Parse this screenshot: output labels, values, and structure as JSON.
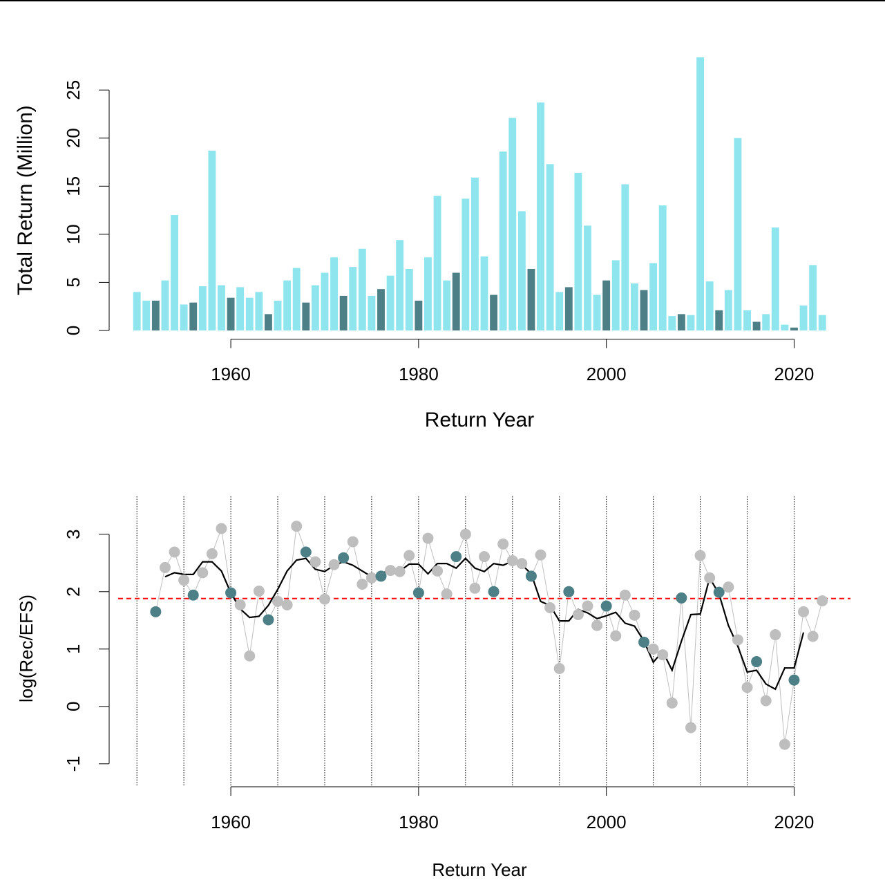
{
  "chart_data": [
    {
      "type": "bar",
      "xlabel": "Return Year",
      "ylabel": "Total Return (Million)",
      "x": [
        1950,
        1951,
        1952,
        1953,
        1954,
        1955,
        1956,
        1957,
        1958,
        1959,
        1960,
        1961,
        1962,
        1963,
        1964,
        1965,
        1966,
        1967,
        1968,
        1969,
        1970,
        1971,
        1972,
        1973,
        1974,
        1975,
        1976,
        1977,
        1978,
        1979,
        1980,
        1981,
        1982,
        1983,
        1984,
        1985,
        1986,
        1987,
        1988,
        1989,
        1990,
        1991,
        1992,
        1993,
        1994,
        1995,
        1996,
        1997,
        1998,
        1999,
        2000,
        2001,
        2002,
        2003,
        2004,
        2005,
        2006,
        2007,
        2008,
        2009,
        2010,
        2011,
        2012,
        2013,
        2014,
        2015,
        2016,
        2017,
        2018,
        2019,
        2020,
        2021,
        2022,
        2023
      ],
      "values": [
        4.0,
        3.1,
        3.1,
        5.2,
        12.0,
        2.7,
        2.9,
        4.6,
        18.7,
        4.7,
        3.4,
        4.5,
        3.4,
        4.0,
        1.7,
        3.1,
        5.2,
        6.5,
        2.9,
        4.7,
        6.0,
        7.6,
        3.6,
        6.6,
        8.5,
        3.6,
        4.3,
        5.7,
        9.4,
        6.4,
        3.1,
        7.6,
        14.0,
        5.2,
        6.0,
        13.7,
        15.9,
        7.7,
        3.7,
        18.6,
        22.1,
        12.4,
        6.4,
        23.7,
        17.3,
        4.0,
        4.5,
        16.4,
        10.9,
        3.7,
        5.2,
        7.3,
        15.2,
        4.9,
        4.2,
        7.0,
        13.0,
        1.5,
        1.7,
        1.6,
        28.4,
        5.1,
        2.1,
        4.2,
        20.0,
        2.1,
        0.9,
        1.7,
        10.7,
        0.6,
        0.3,
        2.6,
        6.8,
        1.6
      ],
      "colors": [
        "#8ee5ee",
        "#8ee5ee",
        "#4d7f86",
        "#8ee5ee",
        "#8ee5ee",
        "#8ee5ee",
        "#4d7f86",
        "#8ee5ee",
        "#8ee5ee",
        "#8ee5ee",
        "#4d7f86",
        "#8ee5ee",
        "#8ee5ee",
        "#8ee5ee",
        "#4d7f86",
        "#8ee5ee",
        "#8ee5ee",
        "#8ee5ee",
        "#4d7f86",
        "#8ee5ee",
        "#8ee5ee",
        "#8ee5ee",
        "#4d7f86",
        "#8ee5ee",
        "#8ee5ee",
        "#8ee5ee",
        "#4d7f86",
        "#8ee5ee",
        "#8ee5ee",
        "#8ee5ee",
        "#4d7f86",
        "#8ee5ee",
        "#8ee5ee",
        "#8ee5ee",
        "#4d7f86",
        "#8ee5ee",
        "#8ee5ee",
        "#8ee5ee",
        "#4d7f86",
        "#8ee5ee",
        "#8ee5ee",
        "#8ee5ee",
        "#4d7f86",
        "#8ee5ee",
        "#8ee5ee",
        "#8ee5ee",
        "#4d7f86",
        "#8ee5ee",
        "#8ee5ee",
        "#8ee5ee",
        "#4d7f86",
        "#8ee5ee",
        "#8ee5ee",
        "#8ee5ee",
        "#4d7f86",
        "#8ee5ee",
        "#8ee5ee",
        "#8ee5ee",
        "#4d7f86",
        "#8ee5ee",
        "#8ee5ee",
        "#8ee5ee",
        "#4d7f86",
        "#8ee5ee",
        "#8ee5ee",
        "#8ee5ee",
        "#4d7f86",
        "#8ee5ee",
        "#8ee5ee",
        "#8ee5ee",
        "#4d7f86",
        "#8ee5ee",
        "#8ee5ee",
        "#8ee5ee"
      ],
      "xlim": [
        1948,
        2026
      ],
      "xticks": [
        1960,
        1980,
        2000,
        2020
      ],
      "ylim": [
        -0.9,
        29.4
      ],
      "yticks": [
        0,
        5,
        10,
        15,
        20,
        25
      ]
    },
    {
      "type": "line",
      "xlabel": "Return Year",
      "ylabel": "log(Rec/EFS)",
      "x": [
        1952,
        1953,
        1954,
        1955,
        1956,
        1957,
        1958,
        1959,
        1960,
        1961,
        1962,
        1963,
        1964,
        1965,
        1966,
        1967,
        1968,
        1969,
        1970,
        1971,
        1972,
        1973,
        1974,
        1975,
        1976,
        1977,
        1978,
        1979,
        1980,
        1981,
        1982,
        1983,
        1984,
        1985,
        1986,
        1987,
        1988,
        1989,
        1990,
        1991,
        1992,
        1993,
        1994,
        1995,
        1996,
        1997,
        1998,
        1999,
        2000,
        2001,
        2002,
        2003,
        2004,
        2005,
        2006,
        2007,
        2008,
        2009,
        2010,
        2011,
        2012,
        2013,
        2014,
        2015,
        2016,
        2017,
        2018,
        2019,
        2020,
        2021,
        2022,
        2023
      ],
      "series": [
        {
          "color": "#bebebe",
          "markers": true,
          "values": [
            1.65,
            2.42,
            2.69,
            2.2,
            1.94,
            2.33,
            2.66,
            3.1,
            1.98,
            1.77,
            0.88,
            2.01,
            1.51,
            1.83,
            1.77,
            3.14,
            2.69,
            2.52,
            1.87,
            2.47,
            2.59,
            2.87,
            2.13,
            2.24,
            2.27,
            2.37,
            2.35,
            2.63,
            1.98,
            2.93,
            2.36,
            1.96,
            2.61,
            3.0,
            2.06,
            2.61,
            2.0,
            2.83,
            2.54,
            2.49,
            2.27,
            2.64,
            1.72,
            0.66,
            2.0,
            1.6,
            1.75,
            1.41,
            1.75,
            1.23,
            1.94,
            1.59,
            1.12,
            1.0,
            0.9,
            0.06,
            1.89,
            -0.37,
            2.63,
            2.24,
            1.99,
            2.08,
            1.16,
            0.33,
            0.78,
            0.1,
            1.25,
            -0.66,
            0.46,
            1.65,
            1.22,
            1.84
          ],
          "point_colors": [
            "#4d7f86",
            "#bebebe",
            "#bebebe",
            "#bebebe",
            "#4d7f86",
            "#bebebe",
            "#bebebe",
            "#bebebe",
            "#4d7f86",
            "#bebebe",
            "#bebebe",
            "#bebebe",
            "#4d7f86",
            "#bebebe",
            "#bebebe",
            "#bebebe",
            "#4d7f86",
            "#bebebe",
            "#bebebe",
            "#bebebe",
            "#4d7f86",
            "#bebebe",
            "#bebebe",
            "#bebebe",
            "#4d7f86",
            "#bebebe",
            "#bebebe",
            "#bebebe",
            "#4d7f86",
            "#bebebe",
            "#bebebe",
            "#bebebe",
            "#4d7f86",
            "#bebebe",
            "#bebebe",
            "#bebebe",
            "#4d7f86",
            "#bebebe",
            "#bebebe",
            "#bebebe",
            "#4d7f86",
            "#bebebe",
            "#bebebe",
            "#bebebe",
            "#4d7f86",
            "#bebebe",
            "#bebebe",
            "#bebebe",
            "#4d7f86",
            "#bebebe",
            "#bebebe",
            "#bebebe",
            "#4d7f86",
            "#bebebe",
            "#bebebe",
            "#bebebe",
            "#4d7f86",
            "#bebebe",
            "#bebebe",
            "#bebebe",
            "#4d7f86",
            "#bebebe",
            "#bebebe",
            "#bebebe",
            "#4d7f86",
            "#bebebe",
            "#bebebe",
            "#bebebe",
            "#4d7f86",
            "#bebebe",
            "#bebebe",
            "#bebebe"
          ]
        },
        {
          "color": "#000000",
          "markers": false,
          "values": [
            null,
            2.26,
            2.33,
            2.3,
            2.3,
            2.52,
            2.52,
            2.36,
            1.98,
            1.7,
            1.55,
            1.57,
            1.76,
            2.04,
            2.36,
            2.55,
            2.58,
            2.39,
            2.35,
            2.46,
            2.52,
            2.46,
            2.36,
            2.26,
            2.3,
            2.4,
            2.36,
            2.48,
            2.48,
            2.31,
            2.49,
            2.49,
            2.41,
            2.58,
            2.41,
            2.35,
            2.49,
            2.46,
            2.53,
            2.47,
            2.31,
            1.83,
            1.76,
            1.49,
            1.49,
            1.69,
            1.63,
            1.53,
            1.58,
            1.64,
            1.45,
            1.4,
            1.14,
            0.77,
            0.96,
            0.63,
            1.14,
            1.6,
            1.61,
            2.24,
            1.96,
            1.41,
            1.05,
            0.6,
            0.63,
            0.39,
            0.3,
            0.67,
            0.67,
            1.29,
            null,
            null
          ]
        }
      ],
      "hline": {
        "value": 1.88,
        "color": "#ff0000"
      },
      "vlines": [
        1950,
        1955,
        1960,
        1965,
        1970,
        1975,
        1980,
        1985,
        1990,
        1995,
        2000,
        2005,
        2010,
        2015,
        2020
      ],
      "xlim": [
        1948,
        2026
      ],
      "xticks": [
        1960,
        1980,
        2000,
        2020
      ],
      "ylim": [
        -1.4,
        3.66
      ],
      "yticks": [
        -1,
        0,
        1,
        2,
        3
      ]
    }
  ]
}
